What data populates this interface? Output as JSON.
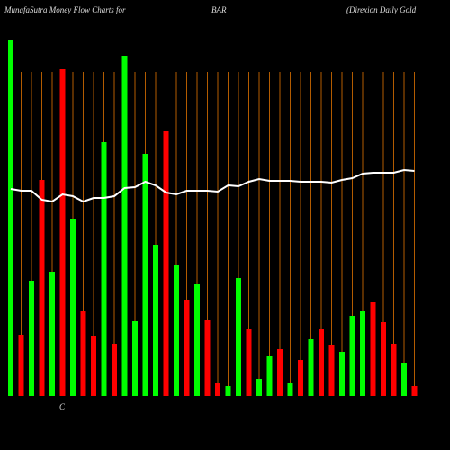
{
  "chart_data": {
    "type": "bar",
    "title": "MunafaSutra  Money Flow  Charts for",
    "subtitle": "BAR",
    "caption": "(Direxion  Daily Gold",
    "annotation": "C",
    "values": [
      395,
      68,
      128,
      240,
      138,
      363,
      197,
      94,
      67,
      282,
      58,
      378,
      83,
      269,
      168,
      294,
      146,
      107,
      125,
      85,
      15,
      11,
      131,
      74,
      19,
      45,
      52,
      14,
      40,
      63,
      74,
      57,
      49,
      89,
      94,
      105,
      82,
      58,
      37,
      11
    ],
    "colors": [
      "#00ff00",
      "#ff0000",
      "#00ff00",
      "#ff0000",
      "#00ff00",
      "#ff0000",
      "#00ff00",
      "#ff0000",
      "#ff0000",
      "#00ff00",
      "#ff0000",
      "#00ff00",
      "#00ff00",
      "#00ff00",
      "#00ff00",
      "#ff0000",
      "#00ff00",
      "#ff0000",
      "#00ff00",
      "#ff0000",
      "#ff0000",
      "#00ff00",
      "#00ff00",
      "#ff0000",
      "#00ff00",
      "#00ff00",
      "#ff0000",
      "#00ff00",
      "#ff0000",
      "#00ff00",
      "#ff0000",
      "#ff0000",
      "#00ff00",
      "#00ff00",
      "#00ff00",
      "#ff0000",
      "#ff0000",
      "#ff0000",
      "#00ff00",
      "#ff0000"
    ],
    "line": {
      "color": "#ffffff",
      "values": [
        230,
        228,
        228,
        218,
        216,
        224,
        222,
        216,
        220,
        220,
        222,
        231,
        232,
        238,
        234,
        226,
        224,
        228,
        228,
        228,
        227,
        234,
        233,
        238,
        241,
        239,
        239,
        239,
        238,
        238,
        238,
        237,
        240,
        242,
        247,
        248,
        248,
        248,
        251,
        250
      ]
    },
    "ylim": [
      0,
      400
    ],
    "vlines": true,
    "vline_color": "#b35c00"
  }
}
